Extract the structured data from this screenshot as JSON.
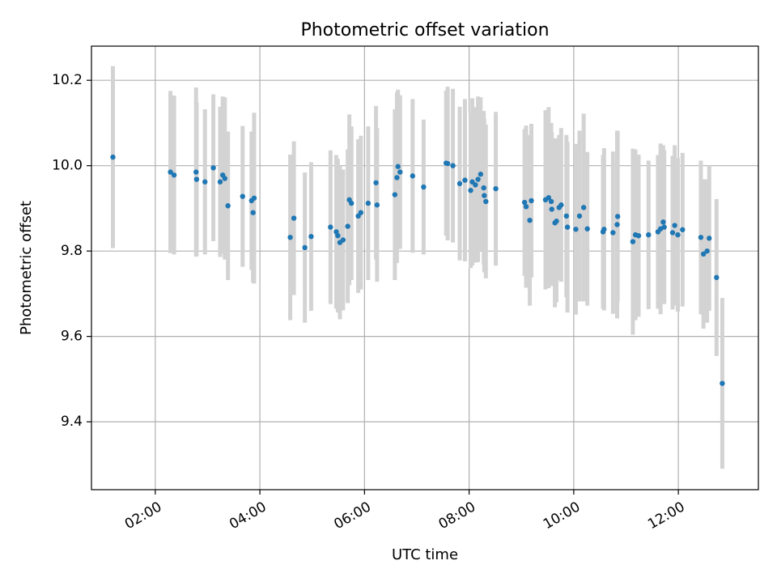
{
  "chart_data": {
    "type": "scatter",
    "title": "Photometric offset variation",
    "xlabel": "UTC time",
    "ylabel": "Photometric offset",
    "x_unit": "hours (UTC)",
    "xlim": [
      0.78,
      13.53
    ],
    "ylim": [
      9.241,
      10.28
    ],
    "x_ticks": [
      2,
      4,
      6,
      8,
      10,
      12
    ],
    "x_tick_labels": [
      "02:00",
      "04:00",
      "06:00",
      "08:00",
      "10:00",
      "12:00"
    ],
    "y_ticks": [
      9.4,
      9.6,
      9.8,
      10.0,
      10.2
    ],
    "y_tick_labels": [
      "9.4",
      "9.6",
      "9.8",
      "10.0",
      "10.2"
    ],
    "grid": true,
    "colors": {
      "points": "#1f77b4",
      "errorbars": "#d3d3d3",
      "grid": "#b0b0b0",
      "axes": "#000000"
    },
    "series": [
      {
        "name": "photometric offset",
        "x": [
          1.19,
          2.29,
          2.36,
          2.78,
          2.79,
          2.95,
          3.11,
          3.24,
          3.29,
          3.33,
          3.39,
          3.67,
          3.84,
          3.87,
          3.89,
          4.58,
          4.65,
          4.86,
          4.98,
          5.35,
          5.46,
          5.49,
          5.53,
          5.59,
          5.68,
          5.71,
          5.75,
          5.88,
          5.93,
          6.07,
          6.22,
          6.24,
          6.58,
          6.62,
          6.64,
          6.68,
          6.92,
          7.13,
          7.56,
          7.59,
          7.69,
          7.82,
          7.92,
          8.03,
          8.06,
          8.12,
          8.17,
          8.22,
          8.28,
          8.29,
          8.32,
          8.51,
          9.06,
          9.09,
          9.16,
          9.19,
          9.46,
          9.52,
          9.57,
          9.58,
          9.64,
          9.67,
          9.72,
          9.76,
          9.86,
          9.88,
          10.04,
          10.11,
          10.19,
          10.26,
          10.56,
          10.58,
          10.75,
          10.83,
          10.84,
          11.13,
          11.18,
          11.24,
          11.43,
          11.61,
          11.66,
          11.71,
          11.73,
          11.89,
          11.93,
          11.99,
          12.08,
          12.43,
          12.48,
          12.55,
          12.59,
          12.73,
          12.84
        ],
        "y": [
          10.02,
          9.985,
          9.978,
          9.985,
          9.968,
          9.962,
          9.995,
          9.962,
          9.978,
          9.97,
          9.906,
          9.928,
          9.918,
          9.89,
          9.924,
          9.832,
          9.877,
          9.808,
          9.834,
          9.856,
          9.845,
          9.836,
          9.82,
          9.826,
          9.858,
          9.92,
          9.912,
          9.882,
          9.89,
          9.912,
          9.96,
          9.908,
          9.932,
          9.972,
          9.998,
          9.985,
          9.976,
          9.95,
          10.006,
          10.005,
          10.0,
          9.958,
          9.966,
          9.942,
          9.962,
          9.955,
          9.968,
          9.98,
          9.948,
          9.93,
          9.916,
          9.946,
          9.914,
          9.904,
          9.872,
          9.918,
          9.92,
          9.925,
          9.916,
          9.898,
          9.866,
          9.87,
          9.902,
          9.908,
          9.882,
          9.856,
          9.851,
          9.882,
          9.902,
          9.852,
          9.845,
          9.851,
          9.843,
          9.862,
          9.881,
          9.822,
          9.838,
          9.836,
          9.838,
          9.845,
          9.852,
          9.868,
          9.856,
          9.843,
          9.86,
          9.838,
          9.85,
          9.832,
          9.793,
          9.8,
          9.83,
          9.738,
          9.49
        ],
        "yerr": [
          0.213,
          0.19,
          0.186,
          0.198,
          0.18,
          0.17,
          0.172,
          0.176,
          0.184,
          0.19,
          0.174,
          0.165,
          0.162,
          0.164,
          0.2,
          0.194,
          0.18,
          0.176,
          0.174,
          0.18,
          0.18,
          0.18,
          0.18,
          0.165,
          0.18,
          0.2,
          0.18,
          0.18,
          0.18,
          0.18,
          0.18,
          0.18,
          0.2,
          0.2,
          0.18,
          0.18,
          0.18,
          0.158,
          0.17,
          0.18,
          0.18,
          0.18,
          0.19,
          0.182,
          0.196,
          0.182,
          0.194,
          0.18,
          0.18,
          0.18,
          0.18,
          0.18,
          0.172,
          0.19,
          0.2,
          0.18,
          0.21,
          0.212,
          0.184,
          0.18,
          0.198,
          0.19,
          0.17,
          0.18,
          0.19,
          0.2,
          0.2,
          0.2,
          0.22,
          0.18,
          0.18,
          0.19,
          0.19,
          0.22,
          0.2,
          0.218,
          0.2,
          0.19,
          0.174,
          0.18,
          0.2,
          0.18,
          0.18,
          0.18,
          0.188,
          0.18,
          0.18,
          0.18,
          0.175,
          0.168,
          0.17,
          0.184,
          0.2
        ]
      }
    ]
  }
}
